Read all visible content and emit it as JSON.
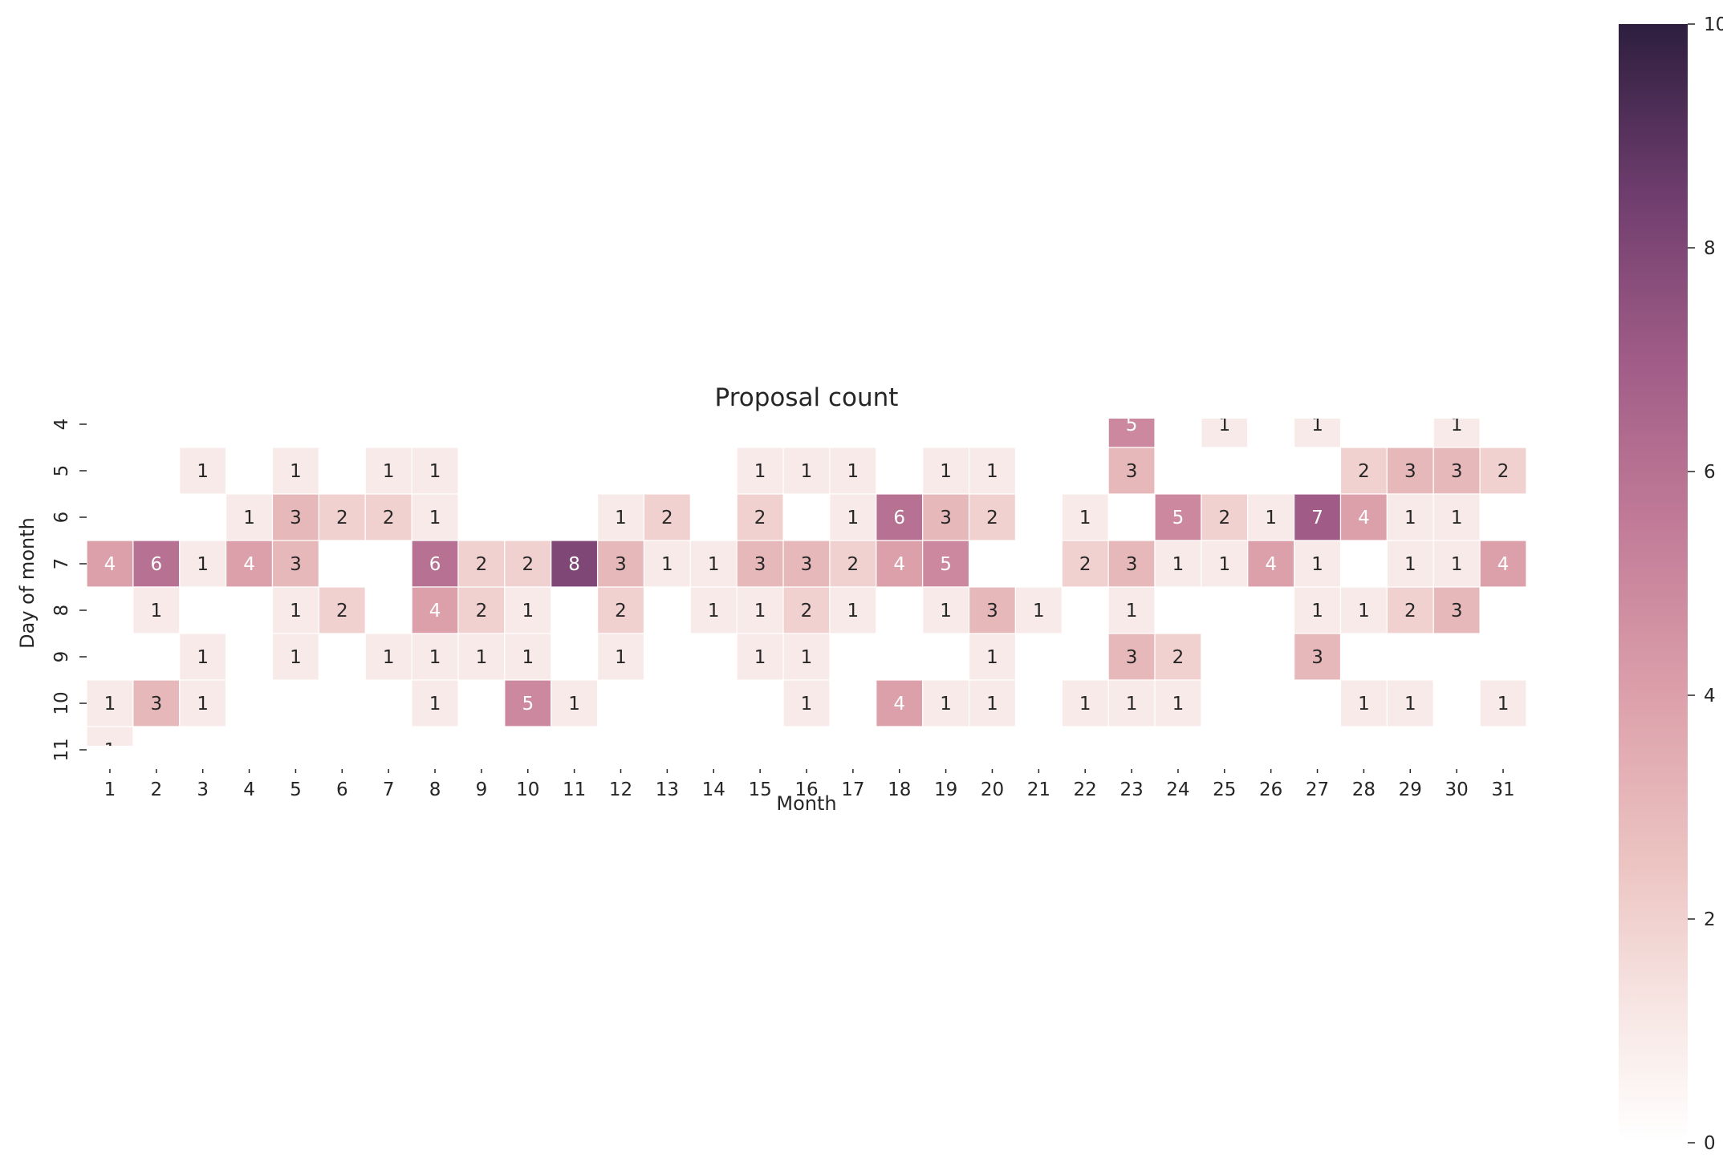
{
  "chart_data": {
    "type": "heatmap",
    "title": "Proposal count",
    "xlabel": "Month",
    "ylabel": "Day of month",
    "x_categories": [
      1,
      2,
      3,
      4,
      5,
      6,
      7,
      8,
      9,
      10,
      11,
      12,
      13,
      14,
      15,
      16,
      17,
      18,
      19,
      20,
      21,
      22,
      23,
      24,
      25,
      26,
      27,
      28,
      29,
      30,
      31
    ],
    "y_categories": [
      4,
      5,
      6,
      7,
      8,
      9,
      10,
      11
    ],
    "colorbar": {
      "min": 0,
      "max": 10,
      "ticks": [
        0,
        2,
        4,
        6,
        8,
        10
      ]
    },
    "colors": {
      "low": "#fbf4f2",
      "mid": "#d48c9e",
      "high": "#2d1e3e"
    },
    "values": [
      [
        null,
        null,
        null,
        null,
        null,
        null,
        null,
        null,
        null,
        null,
        null,
        null,
        null,
        null,
        null,
        null,
        null,
        null,
        null,
        null,
        null,
        null,
        5,
        null,
        1,
        null,
        1,
        null,
        null,
        1,
        null
      ],
      [
        null,
        null,
        1,
        null,
        1,
        null,
        1,
        1,
        null,
        null,
        null,
        null,
        null,
        null,
        1,
        1,
        1,
        null,
        1,
        1,
        null,
        null,
        3,
        null,
        null,
        null,
        null,
        2,
        3,
        3,
        2
      ],
      [
        null,
        null,
        null,
        1,
        3,
        2,
        2,
        1,
        null,
        null,
        null,
        1,
        2,
        null,
        2,
        null,
        1,
        6,
        3,
        2,
        null,
        1,
        null,
        5,
        2,
        1,
        7,
        4,
        1,
        1,
        null
      ],
      [
        4,
        6,
        1,
        4,
        3,
        null,
        null,
        6,
        2,
        2,
        8,
        3,
        1,
        1,
        3,
        3,
        2,
        4,
        5,
        null,
        null,
        2,
        3,
        1,
        1,
        4,
        1,
        null,
        1,
        1,
        4
      ],
      [
        null,
        1,
        null,
        null,
        1,
        2,
        null,
        4,
        2,
        1,
        null,
        2,
        null,
        1,
        1,
        2,
        1,
        null,
        1,
        3,
        1,
        null,
        1,
        null,
        null,
        null,
        1,
        1,
        2,
        3,
        null
      ],
      [
        null,
        null,
        1,
        null,
        1,
        null,
        1,
        1,
        1,
        1,
        null,
        1,
        null,
        null,
        1,
        1,
        null,
        null,
        null,
        1,
        null,
        null,
        3,
        2,
        null,
        null,
        3,
        null,
        null,
        null,
        null
      ],
      [
        1,
        3,
        1,
        null,
        null,
        null,
        null,
        1,
        null,
        5,
        1,
        null,
        null,
        null,
        null,
        1,
        null,
        4,
        1,
        1,
        null,
        1,
        1,
        1,
        null,
        null,
        null,
        1,
        1,
        null,
        1
      ],
      [
        1,
        null,
        null,
        null,
        null,
        null,
        null,
        null,
        null,
        null,
        null,
        null,
        null,
        null,
        null,
        null,
        null,
        null,
        null,
        null,
        null,
        null,
        null,
        null,
        null,
        null,
        null,
        null,
        null,
        null,
        null
      ]
    ]
  }
}
